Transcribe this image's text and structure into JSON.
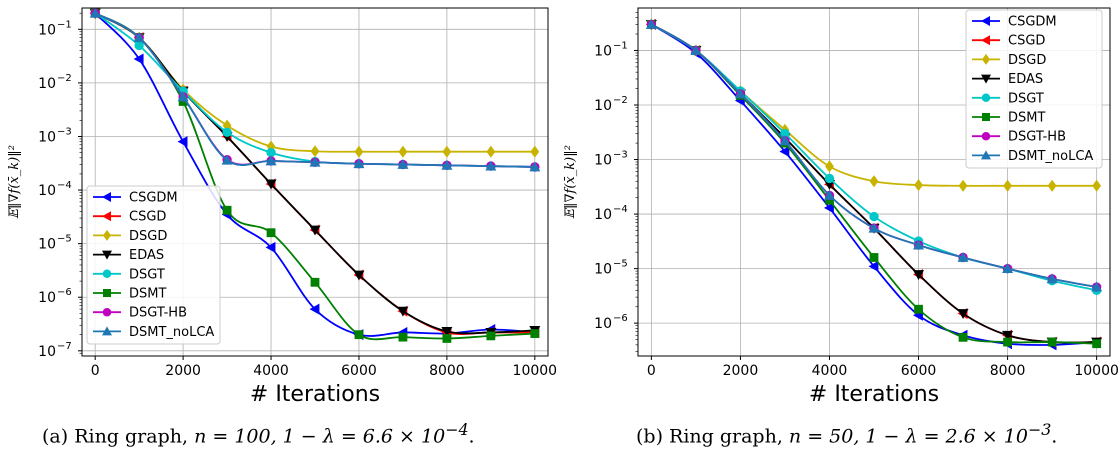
{
  "chart_data": [
    {
      "type": "line",
      "panel": "a",
      "caption_label": "(a) Ring graph,",
      "caption_math": "n = 100, 1 − λ = 6.6 × 10",
      "caption_exp": "−4",
      "xlabel": "# Iterations",
      "ylabel": "𝔼‖∇f(x̄_k)‖²",
      "yscale": "log",
      "xlim": [
        -300,
        10300
      ],
      "ylim": [
        8e-08,
        0.25
      ],
      "xticks": [
        0,
        2000,
        4000,
        6000,
        8000,
        10000
      ],
      "yticks": [
        -7,
        -6,
        -5,
        -4,
        -3,
        -2,
        -1
      ],
      "grid": true,
      "legend_position": "lower-left",
      "series": [
        {
          "name": "CSGDM",
          "color": "#0000ff",
          "marker": "triangle-left",
          "x": [
            0,
            1000,
            2000,
            3000,
            4000,
            5000,
            6000,
            7000,
            8000,
            9000,
            10000
          ],
          "y": [
            0.2,
            0.028,
            0.0008,
            3.5e-05,
            8.5e-06,
            6e-07,
            2e-07,
            2.2e-07,
            2.1e-07,
            2.5e-07,
            2.2e-07
          ]
        },
        {
          "name": "CSGD",
          "color": "#ff0000",
          "marker": "triangle-left",
          "x": [
            0,
            1000,
            2000,
            3000,
            4000,
            5000,
            6000,
            7000,
            8000,
            9000,
            10000
          ],
          "y": [
            0.2,
            0.07,
            0.007,
            0.001,
            0.00013,
            1.8e-05,
            2.6e-06,
            5.5e-07,
            2.2e-07,
            2.2e-07,
            2.2e-07
          ]
        },
        {
          "name": "DSGD",
          "color": "#c8b400",
          "marker": "diamond",
          "x": [
            0,
            1000,
            2000,
            3000,
            4000,
            5000,
            6000,
            7000,
            8000,
            9000,
            10000
          ],
          "y": [
            0.2,
            0.07,
            0.0075,
            0.0016,
            0.00065,
            0.00053,
            0.00052,
            0.00052,
            0.00052,
            0.00052,
            0.00052
          ]
        },
        {
          "name": "EDAS",
          "color": "#000000",
          "marker": "triangle-down",
          "x": [
            0,
            1000,
            2000,
            3000,
            4000,
            5000,
            6000,
            7000,
            8000,
            9000,
            10000
          ],
          "y": [
            0.2,
            0.07,
            0.007,
            0.001,
            0.00013,
            1.8e-05,
            2.6e-06,
            5.5e-07,
            2.3e-07,
            2.2e-07,
            2.4e-07
          ]
        },
        {
          "name": "DSGT",
          "color": "#00c8c8",
          "marker": "circle",
          "x": [
            0,
            1000,
            2000,
            3000,
            4000,
            5000,
            6000,
            7000,
            8000,
            9000,
            10000
          ],
          "y": [
            0.2,
            0.05,
            0.007,
            0.0012,
            0.0005,
            0.00034,
            0.00031,
            0.0003,
            0.00029,
            0.00028,
            0.00027
          ]
        },
        {
          "name": "DSMT",
          "color": "#008000",
          "marker": "square",
          "x": [
            0,
            1000,
            2000,
            3000,
            4000,
            5000,
            6000,
            7000,
            8000,
            9000,
            10000
          ],
          "y": [
            0.2,
            0.07,
            0.0045,
            4.2e-05,
            1.6e-05,
            1.9e-06,
            2e-07,
            1.8e-07,
            1.7e-07,
            1.9e-07,
            2.1e-07
          ]
        },
        {
          "name": "DSGT-HB",
          "color": "#c000c0",
          "marker": "circle",
          "x": [
            0,
            1000,
            2000,
            3000,
            4000,
            5000,
            6000,
            7000,
            8000,
            9000,
            10000
          ],
          "y": [
            0.2,
            0.07,
            0.0055,
            0.00037,
            0.00035,
            0.00033,
            0.00031,
            0.0003,
            0.00029,
            0.00028,
            0.00027
          ]
        },
        {
          "name": "DSMT_noLCA",
          "color": "#1f77b4",
          "marker": "triangle-up",
          "x": [
            0,
            1000,
            2000,
            3000,
            4000,
            5000,
            6000,
            7000,
            8000,
            9000,
            10000
          ],
          "y": [
            0.2,
            0.07,
            0.0055,
            0.00036,
            0.00035,
            0.00033,
            0.00031,
            0.0003,
            0.00029,
            0.00028,
            0.00027
          ]
        }
      ]
    },
    {
      "type": "line",
      "panel": "b",
      "caption_label": "(b) Ring graph,",
      "caption_math": "n = 50, 1 − λ = 2.6 × 10",
      "caption_exp": "−3",
      "xlabel": "# Iterations",
      "ylabel": "𝔼‖∇f(x̄_k)‖²",
      "yscale": "log",
      "xlim": [
        -300,
        10300
      ],
      "ylim": [
        2.5e-07,
        0.6
      ],
      "xticks": [
        0,
        2000,
        4000,
        6000,
        8000,
        10000
      ],
      "yticks": [
        -6,
        -5,
        -4,
        -3,
        -2,
        -1
      ],
      "grid": true,
      "legend_position": "top-right",
      "series": [
        {
          "name": "CSGDM",
          "color": "#0000ff",
          "marker": "triangle-left",
          "x": [
            0,
            1000,
            2000,
            3000,
            4000,
            5000,
            6000,
            7000,
            8000,
            9000,
            10000
          ],
          "y": [
            0.3,
            0.09,
            0.012,
            0.0014,
            0.00013,
            1.1e-05,
            1.4e-06,
            6e-07,
            4.2e-07,
            4e-07,
            4.5e-07
          ]
        },
        {
          "name": "CSGD",
          "color": "#ff0000",
          "marker": "triangle-left",
          "x": [
            0,
            1000,
            2000,
            3000,
            4000,
            5000,
            6000,
            7000,
            8000,
            9000,
            10000
          ],
          "y": [
            0.3,
            0.1,
            0.016,
            0.0025,
            0.00035,
            5.5e-05,
            7.8e-06,
            1.5e-06,
            6e-07,
            4.5e-07,
            4.5e-07
          ]
        },
        {
          "name": "DSGD",
          "color": "#c8b400",
          "marker": "diamond",
          "x": [
            0,
            1000,
            2000,
            3000,
            4000,
            5000,
            6000,
            7000,
            8000,
            9000,
            10000
          ],
          "y": [
            0.3,
            0.1,
            0.018,
            0.0035,
            0.00075,
            0.0004,
            0.00034,
            0.00033,
            0.00033,
            0.00033,
            0.00033
          ]
        },
        {
          "name": "EDAS",
          "color": "#000000",
          "marker": "triangle-down",
          "x": [
            0,
            1000,
            2000,
            3000,
            4000,
            5000,
            6000,
            7000,
            8000,
            9000,
            10000
          ],
          "y": [
            0.3,
            0.1,
            0.016,
            0.0025,
            0.00035,
            5.5e-05,
            7.8e-06,
            1.5e-06,
            6e-07,
            4.5e-07,
            4.5e-07
          ]
        },
        {
          "name": "DSGT",
          "color": "#00c8c8",
          "marker": "circle",
          "x": [
            0,
            1000,
            2000,
            3000,
            4000,
            5000,
            6000,
            7000,
            8000,
            9000,
            10000
          ],
          "y": [
            0.3,
            0.1,
            0.018,
            0.003,
            0.00045,
            9e-05,
            3.2e-05,
            1.6e-05,
            1e-05,
            6e-06,
            4e-06
          ]
        },
        {
          "name": "DSMT",
          "color": "#008000",
          "marker": "square",
          "x": [
            0,
            1000,
            2000,
            3000,
            4000,
            5000,
            6000,
            7000,
            8000,
            9000,
            10000
          ],
          "y": [
            0.3,
            0.1,
            0.015,
            0.002,
            0.00018,
            1.6e-05,
            1.8e-06,
            5.5e-07,
            4.5e-07,
            4.5e-07,
            4.2e-07
          ]
        },
        {
          "name": "DSGT-HB",
          "color": "#c000c0",
          "marker": "circle",
          "x": [
            0,
            1000,
            2000,
            3000,
            4000,
            5000,
            6000,
            7000,
            8000,
            9000,
            10000
          ],
          "y": [
            0.3,
            0.1,
            0.016,
            0.0022,
            0.00022,
            5.5e-05,
            2.7e-05,
            1.6e-05,
            1e-05,
            6.5e-06,
            4.6e-06
          ]
        },
        {
          "name": "DSMT_noLCA",
          "color": "#1f77b4",
          "marker": "triangle-up",
          "x": [
            0,
            1000,
            2000,
            3000,
            4000,
            5000,
            6000,
            7000,
            8000,
            9000,
            10000
          ],
          "y": [
            0.3,
            0.1,
            0.016,
            0.0022,
            0.00022,
            5.5e-05,
            2.7e-05,
            1.6e-05,
            1e-05,
            6.5e-06,
            4.6e-06
          ]
        }
      ]
    }
  ]
}
